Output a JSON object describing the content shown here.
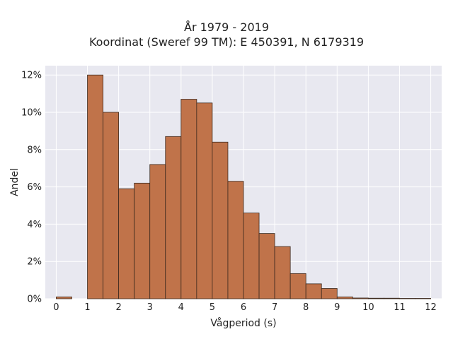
{
  "chart_data": {
    "type": "bar",
    "title": "År 1979 - 2019",
    "subtitle": "Koordinat (Sweref 99 TM): E 450391, N 6179319",
    "xlabel": "Vågperiod (s)",
    "ylabel": "Andel",
    "xlim": [
      -0.35,
      12.35
    ],
    "ylim": [
      0,
      12.5
    ],
    "y_unit": "%",
    "x_ticks": [
      0,
      1,
      2,
      3,
      4,
      5,
      6,
      7,
      8,
      9,
      10,
      11,
      12
    ],
    "y_ticks": [
      0,
      2,
      4,
      6,
      8,
      10,
      12
    ],
    "y_tick_labels": [
      "0%",
      "2%",
      "4%",
      "6%",
      "8%",
      "10%",
      "12%"
    ],
    "bin_width": 0.5,
    "bin_starts": [
      0,
      0.5,
      1,
      1.5,
      2,
      2.5,
      3,
      3.5,
      4,
      4.5,
      5,
      5.5,
      6,
      6.5,
      7,
      7.5,
      8,
      8.5,
      9,
      9.5,
      10,
      10.5,
      11,
      11.5
    ],
    "values": [
      0.1,
      0,
      12.0,
      10.0,
      5.9,
      6.2,
      7.2,
      8.7,
      10.7,
      10.5,
      8.4,
      6.3,
      4.6,
      3.5,
      2.8,
      1.35,
      0.8,
      0.55,
      0.1,
      0.04,
      0.03,
      0.03,
      0.02,
      0.02
    ],
    "grid": true,
    "colors": {
      "bar": "#c0734a",
      "bar_edge": "#3d2a1f",
      "plot_bg": "#e8e8f0",
      "grid": "#ffffff"
    }
  }
}
